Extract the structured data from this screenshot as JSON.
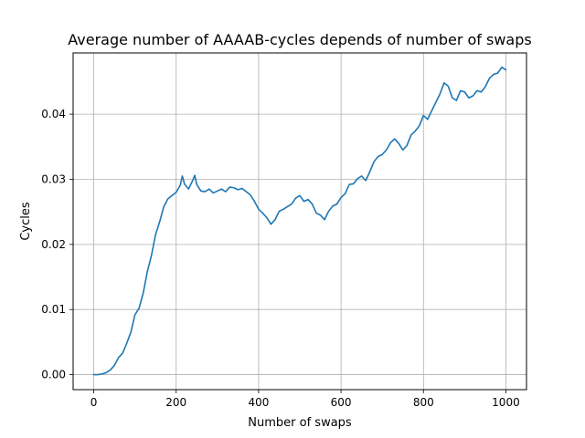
{
  "chart_data": {
    "type": "line",
    "title": "Average number of AAAAB-cycles depends of number of swaps",
    "xlabel": "Number of swaps",
    "ylabel": "Cycles",
    "xlim": [
      -50,
      1050
    ],
    "ylim": [
      -0.0023,
      0.0494
    ],
    "xticks": [
      0,
      200,
      400,
      600,
      800,
      1000
    ],
    "yticks": [
      0.0,
      0.01,
      0.02,
      0.03,
      0.04
    ],
    "xtick_labels": [
      "0",
      "200",
      "400",
      "600",
      "800",
      "1000"
    ],
    "ytick_labels": [
      "0.00",
      "0.01",
      "0.02",
      "0.03",
      "0.04"
    ],
    "grid": true,
    "series": [
      {
        "color": "#1f77b4",
        "x": [
          0,
          10,
          20,
          30,
          40,
          50,
          60,
          70,
          80,
          90,
          100,
          110,
          120,
          130,
          140,
          150,
          160,
          170,
          180,
          190,
          200,
          210,
          215,
          220,
          230,
          240,
          245,
          250,
          260,
          270,
          280,
          290,
          300,
          310,
          320,
          330,
          340,
          350,
          360,
          370,
          380,
          390,
          400,
          410,
          420,
          430,
          440,
          450,
          460,
          470,
          480,
          490,
          500,
          510,
          520,
          530,
          540,
          550,
          560,
          570,
          580,
          590,
          600,
          610,
          620,
          630,
          640,
          650,
          660,
          670,
          680,
          690,
          700,
          710,
          720,
          730,
          740,
          750,
          760,
          770,
          780,
          790,
          800,
          810,
          820,
          830,
          840,
          850,
          860,
          870,
          880,
          890,
          900,
          910,
          920,
          930,
          940,
          950,
          960,
          970,
          980,
          990,
          1000
        ],
        "y": [
          0.0,
          0.0,
          0.0001,
          0.0003,
          0.0007,
          0.0014,
          0.0026,
          0.0033,
          0.0048,
          0.0065,
          0.0092,
          0.0102,
          0.0125,
          0.0158,
          0.0183,
          0.0215,
          0.0235,
          0.0258,
          0.027,
          0.0275,
          0.028,
          0.0291,
          0.0305,
          0.0293,
          0.0285,
          0.0298,
          0.0306,
          0.0292,
          0.0282,
          0.0281,
          0.0285,
          0.0279,
          0.0282,
          0.0285,
          0.0281,
          0.0288,
          0.0287,
          0.0284,
          0.0286,
          0.0281,
          0.0276,
          0.0266,
          0.0254,
          0.0248,
          0.0241,
          0.0231,
          0.0238,
          0.0251,
          0.0254,
          0.0258,
          0.0262,
          0.0271,
          0.0275,
          0.0266,
          0.0269,
          0.0262,
          0.0248,
          0.0245,
          0.0238,
          0.0251,
          0.0259,
          0.0262,
          0.0272,
          0.0278,
          0.0292,
          0.0293,
          0.0301,
          0.0305,
          0.0298,
          0.0312,
          0.0327,
          0.0335,
          0.0338,
          0.0345,
          0.0356,
          0.0362,
          0.0355,
          0.0345,
          0.0352,
          0.0368,
          0.0374,
          0.0382,
          0.0398,
          0.0392,
          0.0405,
          0.0418,
          0.0431,
          0.0448,
          0.0443,
          0.0425,
          0.0421,
          0.0436,
          0.0434,
          0.0425,
          0.0428,
          0.0436,
          0.0434,
          0.0442,
          0.0455,
          0.0461,
          0.0463,
          0.0472,
          0.0468
        ]
      }
    ]
  }
}
